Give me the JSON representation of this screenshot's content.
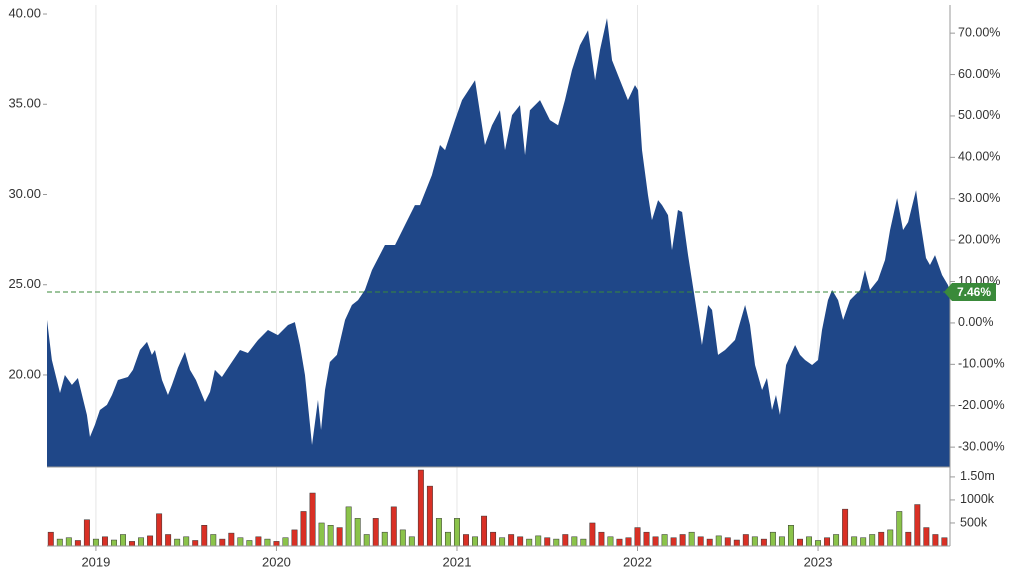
{
  "chart_data": [
    {
      "type": "area",
      "color": "#1f4788",
      "xlim": [
        2018.729,
        2023.731
      ],
      "ylim": [
        14.9,
        40.5
      ],
      "yticks": [
        {
          "value": 20,
          "label": "20.00"
        },
        {
          "value": 25,
          "label": "25.00"
        },
        {
          "value": 30,
          "label": "30.00"
        },
        {
          "value": 35,
          "label": "35.00"
        },
        {
          "value": 40,
          "label": "40.00"
        }
      ],
      "y2lim": [
        -34.8,
        76.8
      ],
      "y2ticks": [
        {
          "value": -30,
          "label": "-30.00%"
        },
        {
          "value": -20,
          "label": "-20.00%"
        },
        {
          "value": -10,
          "label": "-10.00%"
        },
        {
          "value": 0,
          "label": "0.00%"
        },
        {
          "value": 10,
          "label": "10.00%"
        },
        {
          "value": 20,
          "label": "20.00%"
        },
        {
          "value": 30,
          "label": "30.00%"
        },
        {
          "value": 40,
          "label": "40.00%"
        },
        {
          "value": 50,
          "label": "50.00%"
        },
        {
          "value": 60,
          "label": "60.00%"
        },
        {
          "value": 70,
          "label": "70.00%"
        }
      ],
      "last_change": {
        "value": 7.46,
        "label": "7.46%",
        "color": "#3a8a3a"
      },
      "x": [
        2018.729,
        2018.756,
        2018.801,
        2018.828,
        2018.867,
        2018.9,
        2018.95,
        2018.967,
        2018.994,
        2019.022,
        2019.061,
        2019.089,
        2019.122,
        2019.177,
        2019.205,
        2019.244,
        2019.283,
        2019.31,
        2019.327,
        2019.366,
        2019.399,
        2019.421,
        2019.454,
        2019.493,
        2019.521,
        2019.554,
        2019.604,
        2019.632,
        2019.659,
        2019.698,
        2019.742,
        2019.798,
        2019.842,
        2019.898,
        2019.953,
        2020.008,
        2020.064,
        2020.102,
        2020.13,
        2020.158,
        2020.197,
        2020.23,
        2020.247,
        2020.269,
        2020.296,
        2020.335,
        2020.38,
        2020.418,
        2020.452,
        2020.49,
        2020.529,
        2020.601,
        2020.657,
        2020.712,
        2020.767,
        2020.795,
        2020.861,
        2020.906,
        2020.934,
        2020.989,
        2021.028,
        2021.1,
        2021.155,
        2021.194,
        2021.238,
        2021.266,
        2021.305,
        2021.349,
        2021.377,
        2021.404,
        2021.46,
        2021.515,
        2021.56,
        2021.598,
        2021.637,
        2021.681,
        2021.726,
        2021.765,
        2021.792,
        2021.831,
        2021.859,
        2021.903,
        2021.947,
        2021.986,
        2022.003,
        2022.025,
        2022.058,
        2022.08,
        2022.114,
        2022.136,
        2022.169,
        2022.191,
        2022.224,
        2022.247,
        2022.28,
        2022.319,
        2022.357,
        2022.391,
        2022.413,
        2022.446,
        2022.485,
        2022.54,
        2022.596,
        2022.623,
        2022.651,
        2022.69,
        2022.717,
        2022.745,
        2022.767,
        2022.789,
        2022.823,
        2022.873,
        2022.9,
        2022.928,
        2022.967,
        2023.0,
        2023.022,
        2023.055,
        2023.078,
        2023.111,
        2023.139,
        2023.177,
        2023.233,
        2023.26,
        2023.288,
        2023.332,
        2023.371,
        2023.399,
        2023.438,
        2023.471,
        2023.499,
        2023.543,
        2023.565,
        2023.598,
        2023.62,
        2023.648,
        2023.687,
        2023.72,
        2023.731
      ],
      "values": [
        23.05,
        20.83,
        19.0,
        20.0,
        19.45,
        19.83,
        17.79,
        16.57,
        17.23,
        18.06,
        18.34,
        18.89,
        19.72,
        19.89,
        20.28,
        21.38,
        21.83,
        21.11,
        21.38,
        19.72,
        18.89,
        19.45,
        20.39,
        21.27,
        20.28,
        19.72,
        18.5,
        19.06,
        20.28,
        19.89,
        20.55,
        21.38,
        21.22,
        21.94,
        22.49,
        22.21,
        22.77,
        22.93,
        21.66,
        20.0,
        16.12,
        18.62,
        16.95,
        19.17,
        20.72,
        21.11,
        23.05,
        23.88,
        24.15,
        24.71,
        25.81,
        27.2,
        27.2,
        28.31,
        29.41,
        29.41,
        31.07,
        32.74,
        32.46,
        34.12,
        35.23,
        36.33,
        32.74,
        33.84,
        34.67,
        32.46,
        34.4,
        34.95,
        32.18,
        34.67,
        35.23,
        34.12,
        33.84,
        35.23,
        36.89,
        38.27,
        39.1,
        36.33,
        38.0,
        39.77,
        37.44,
        36.33,
        35.23,
        36.06,
        35.78,
        32.46,
        29.97,
        28.58,
        29.69,
        29.41,
        28.86,
        26.92,
        29.14,
        29.03,
        26.64,
        24.15,
        21.66,
        23.88,
        23.6,
        21.11,
        21.38,
        21.94,
        23.88,
        22.77,
        20.55,
        19.17,
        19.83,
        18.06,
        18.89,
        17.79,
        20.55,
        21.66,
        21.11,
        20.83,
        20.55,
        20.83,
        22.49,
        24.15,
        24.71,
        24.15,
        23.05,
        24.15,
        24.71,
        25.81,
        24.71,
        25.26,
        26.37,
        28.03,
        29.8,
        28.03,
        28.47,
        30.24,
        28.58,
        26.48,
        26.09,
        26.64,
        25.54,
        24.98,
        24.59
      ]
    },
    {
      "type": "bar",
      "xlim": [
        2018.729,
        2023.731
      ],
      "xticks": [
        2019,
        2020,
        2021,
        2022,
        2023
      ],
      "ylim": [
        0,
        1650000
      ],
      "yticks": [
        {
          "value": 500000,
          "label": "500k"
        },
        {
          "value": 1000000,
          "label": "1000k"
        },
        {
          "value": 1500000,
          "label": "1.50m"
        }
      ],
      "x": [
        2018.75,
        2018.8,
        2018.85,
        2018.9,
        2018.95,
        2019.0,
        2019.05,
        2019.1,
        2019.15,
        2019.2,
        2019.25,
        2019.3,
        2019.35,
        2019.4,
        2019.45,
        2019.5,
        2019.55,
        2019.6,
        2019.65,
        2019.7,
        2019.75,
        2019.8,
        2019.85,
        2019.9,
        2019.95,
        2020.0,
        2020.05,
        2020.1,
        2020.15,
        2020.2,
        2020.25,
        2020.3,
        2020.35,
        2020.4,
        2020.45,
        2020.5,
        2020.55,
        2020.6,
        2020.65,
        2020.7,
        2020.75,
        2020.8,
        2020.85,
        2020.9,
        2020.95,
        2021.0,
        2021.05,
        2021.1,
        2021.15,
        2021.2,
        2021.25,
        2021.3,
        2021.35,
        2021.4,
        2021.45,
        2021.5,
        2021.55,
        2021.6,
        2021.65,
        2021.7,
        2021.75,
        2021.8,
        2021.85,
        2021.9,
        2021.95,
        2022.0,
        2022.05,
        2022.1,
        2022.15,
        2022.2,
        2022.25,
        2022.3,
        2022.35,
        2022.4,
        2022.45,
        2022.5,
        2022.55,
        2022.6,
        2022.65,
        2022.7,
        2022.75,
        2022.8,
        2022.85,
        2022.9,
        2022.95,
        2023.0,
        2023.05,
        2023.1,
        2023.15,
        2023.2,
        2023.25,
        2023.3,
        2023.35,
        2023.4,
        2023.45,
        2023.5,
        2023.55,
        2023.6,
        2023.65,
        2023.7
      ],
      "values": [
        300000,
        150000,
        180000,
        120000,
        570000,
        150000,
        200000,
        130000,
        250000,
        100000,
        180000,
        220000,
        700000,
        250000,
        150000,
        200000,
        120000,
        450000,
        250000,
        150000,
        280000,
        180000,
        120000,
        200000,
        150000,
        100000,
        180000,
        350000,
        750000,
        1150000,
        500000,
        450000,
        400000,
        850000,
        600000,
        250000,
        600000,
        300000,
        850000,
        350000,
        200000,
        1650000,
        1300000,
        600000,
        300000,
        600000,
        250000,
        200000,
        650000,
        300000,
        180000,
        250000,
        200000,
        150000,
        220000,
        180000,
        150000,
        250000,
        200000,
        150000,
        500000,
        300000,
        200000,
        150000,
        180000,
        400000,
        300000,
        200000,
        250000,
        180000,
        250000,
        300000,
        200000,
        150000,
        220000,
        180000,
        130000,
        250000,
        200000,
        150000,
        300000,
        200000,
        450000,
        150000,
        200000,
        120000,
        180000,
        250000,
        800000,
        200000,
        180000,
        250000,
        300000,
        350000,
        750000,
        300000,
        900000,
        400000,
        250000,
        180000
      ],
      "colors": [
        "#d93025",
        "#8bc34a",
        "#8bc34a",
        "#d93025",
        "#d93025",
        "#8bc34a",
        "#d93025",
        "#8bc34a",
        "#8bc34a",
        "#d93025",
        "#8bc34a",
        "#d93025",
        "#d93025",
        "#d93025",
        "#8bc34a",
        "#8bc34a",
        "#d93025",
        "#d93025",
        "#8bc34a",
        "#d93025",
        "#d93025",
        "#8bc34a",
        "#8bc34a",
        "#d93025",
        "#8bc34a",
        "#d93025",
        "#8bc34a",
        "#d93025",
        "#d93025",
        "#d93025",
        "#8bc34a",
        "#8bc34a",
        "#d93025",
        "#8bc34a",
        "#8bc34a",
        "#8bc34a",
        "#d93025",
        "#8bc34a",
        "#d93025",
        "#8bc34a",
        "#8bc34a",
        "#d93025",
        "#d93025",
        "#8bc34a",
        "#8bc34a",
        "#8bc34a",
        "#d93025",
        "#8bc34a",
        "#d93025",
        "#d93025",
        "#8bc34a",
        "#d93025",
        "#d93025",
        "#8bc34a",
        "#8bc34a",
        "#d93025",
        "#8bc34a",
        "#d93025",
        "#8bc34a",
        "#8bc34a",
        "#d93025",
        "#d93025",
        "#8bc34a",
        "#d93025",
        "#d93025",
        "#d93025",
        "#d93025",
        "#d93025",
        "#8bc34a",
        "#d93025",
        "#d93025",
        "#8bc34a",
        "#d93025",
        "#d93025",
        "#8bc34a",
        "#d93025",
        "#d93025",
        "#d93025",
        "#8bc34a",
        "#d93025",
        "#8bc34a",
        "#8bc34a",
        "#8bc34a",
        "#d93025",
        "#8bc34a",
        "#8bc34a",
        "#d93025",
        "#8bc34a",
        "#d93025",
        "#8bc34a",
        "#8bc34a",
        "#8bc34a",
        "#d93025",
        "#8bc34a",
        "#8bc34a",
        "#d93025",
        "#d93025",
        "#d93025",
        "#d93025",
        "#d93025"
      ]
    }
  ]
}
